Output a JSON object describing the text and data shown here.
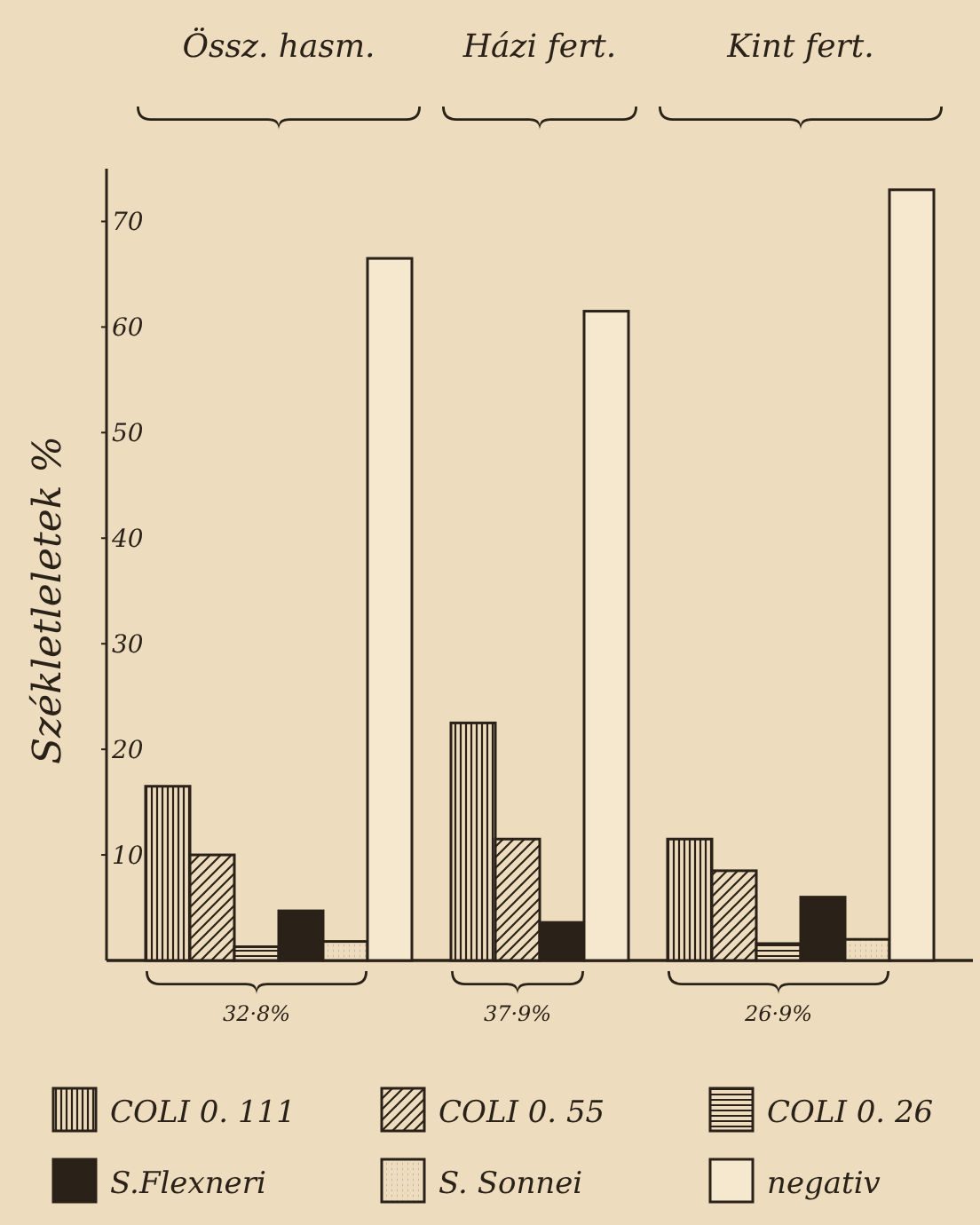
{
  "chart_data": {
    "type": "bar",
    "ylabel": "Székletleletek %",
    "categories": [
      "Össz. hasm.",
      "Házi fert.",
      "Kint fert."
    ],
    "series": [
      {
        "name": "COLI 0. 111",
        "color": "#2a2118",
        "values": [
          16.5,
          22.5,
          11.5
        ]
      },
      {
        "name": "COLI 0. 55",
        "color": "#2a2118",
        "values": [
          10,
          11.5,
          8.5
        ]
      },
      {
        "name": "COLI 0. 26",
        "color": "#2a2118",
        "values": [
          1.3,
          null,
          1.6
        ]
      },
      {
        "name": "S.Flexneri",
        "color": "#2a2118",
        "values": [
          4.7,
          3.6,
          6
        ]
      },
      {
        "name": "S. Sonnei",
        "color": "#2a2118",
        "values": [
          1.8,
          null,
          2
        ]
      },
      {
        "name": "negativ",
        "color": "#2a2118",
        "values": [
          66.5,
          61.5,
          73
        ]
      }
    ],
    "ylim": [
      0,
      75
    ],
    "yticks": [
      10,
      20,
      30,
      40,
      50,
      60,
      70
    ],
    "grid": false,
    "legend": "bottom",
    "annotations": [
      "32·8%",
      "37·9%",
      "26·9%"
    ]
  }
}
